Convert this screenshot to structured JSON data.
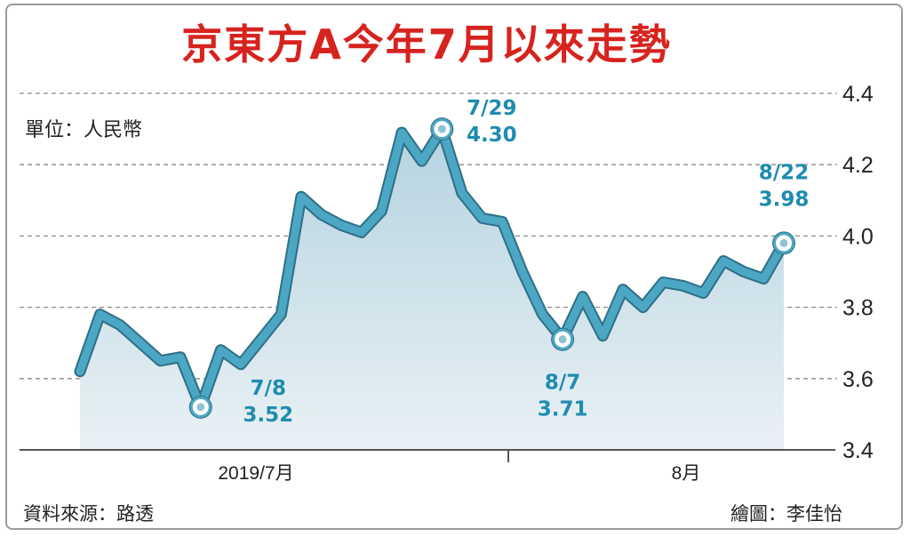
{
  "chart_data": {
    "type": "area",
    "title": "京東方A今年7月以來走勢",
    "unit_label": "單位：人民幣",
    "ylim": [
      3.4,
      4.4
    ],
    "yticks": [
      "4.4",
      "4.2",
      "4.0",
      "3.8",
      "3.6",
      "3.4"
    ],
    "xtick_labels": [
      "2019/7月",
      "8月"
    ],
    "grid": "dashed-horizontal",
    "series": [
      {
        "values": [
          3.62,
          3.78,
          3.75,
          3.7,
          3.65,
          3.66,
          3.52,
          3.68,
          3.64,
          3.71,
          3.78,
          4.11,
          4.06,
          4.03,
          4.01,
          4.07,
          4.29,
          4.21,
          4.3,
          4.12,
          4.05,
          4.04,
          3.9,
          3.78,
          3.71,
          3.83,
          3.72,
          3.85,
          3.8,
          3.87,
          3.86,
          3.84,
          3.93,
          3.9,
          3.88,
          3.98
        ]
      }
    ],
    "annotations": [
      {
        "date": "7/8",
        "value": "3.52"
      },
      {
        "date": "7/29",
        "value": "4.30"
      },
      {
        "date": "8/7",
        "value": "3.71"
      },
      {
        "date": "8/22",
        "value": "3.98"
      }
    ],
    "colors": {
      "line": "#4ba7c3",
      "area_top": "#b5d3e0",
      "area_bottom": "#e9f1f5",
      "title": "#d7231e",
      "annotation": "#1f8cb0"
    }
  },
  "footer": {
    "source": "資料來源：路透",
    "credit": "繪圖：李佳怡"
  }
}
